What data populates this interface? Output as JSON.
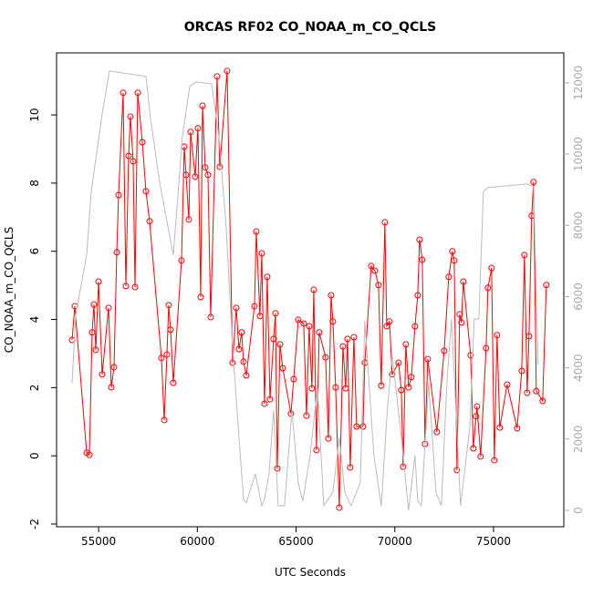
{
  "chart_data": {
    "type": "line",
    "title": "ORCAS RF02 CO_NOAA_m_CO_QCLS",
    "xlabel": "UTC Seconds",
    "ylabel": "CO_NOAA_m_CO_QCLS",
    "xlim": [
      52870,
      78560
    ],
    "xticks": [
      55000,
      60000,
      65000,
      70000,
      75000
    ],
    "ylim": [
      -2.08,
      11.82
    ],
    "yticks": [
      -2,
      0,
      2,
      4,
      6,
      8,
      10
    ],
    "y2lim": [
      -460,
      12840
    ],
    "y2ticks": [
      0,
      2000,
      4000,
      6000,
      8000,
      10000,
      12000
    ],
    "x": [
      53655,
      53794,
      54394,
      54533,
      54671,
      54764,
      54856,
      54995,
      55180,
      55503,
      55641,
      55780,
      55919,
      56011,
      56242,
      56380,
      56519,
      56611,
      56750,
      56842,
      56981,
      57212,
      57397,
      57581,
      58182,
      58320,
      58459,
      58551,
      58644,
      58782,
      59198,
      59337,
      59429,
      59568,
      59660,
      59891,
      60029,
      60168,
      60260,
      60399,
      60538,
      60676,
      61000,
      61138,
      61508,
      61785,
      61970,
      62108,
      62247,
      62339,
      62478,
      62893,
      62986,
      63170,
      63263,
      63401,
      63540,
      63678,
      63863,
      63956,
      64048,
      64187,
      64326,
      64741,
      64879,
      65110,
      65387,
      65526,
      65665,
      65803,
      65896,
      66034,
      66173,
      66496,
      66635,
      66773,
      66866,
      67004,
      67189,
      67374,
      67512,
      67605,
      67743,
      67928,
      68067,
      68390,
      68482,
      68806,
      68991,
      69175,
      69314,
      69498,
      69591,
      69730,
      69868,
      70191,
      70330,
      70422,
      70561,
      70699,
      70838,
      71023,
      71161,
      71254,
      71392,
      71531,
      71670,
      72131,
      72501,
      72732,
      72916,
      73009,
      73148,
      73286,
      73378,
      73471,
      73841,
      73979,
      74117,
      74164,
      74348,
      74625,
      74717,
      74902,
      75041,
      75180,
      75318,
      75688,
      76196,
      76427,
      76565,
      76704,
      76796,
      76935,
      77027,
      77166,
      77489,
      77674
    ],
    "series": [
      {
        "color": "#ff0000",
        "axis": "y",
        "markers": true,
        "values": [
          3.4,
          4.39,
          0.09,
          0.03,
          3.62,
          4.44,
          3.11,
          5.11,
          2.39,
          4.34,
          2.01,
          2.6,
          5.97,
          7.65,
          10.65,
          4.98,
          8.8,
          9.95,
          8.64,
          4.95,
          10.65,
          9.2,
          7.76,
          6.88,
          2.87,
          1.05,
          2.97,
          4.42,
          3.7,
          2.14,
          5.73,
          9.07,
          8.24,
          6.93,
          9.5,
          8.19,
          9.61,
          4.66,
          10.27,
          8.46,
          8.24,
          4.07,
          11.13,
          8.48,
          11.29,
          2.73,
          4.34,
          3.13,
          3.62,
          2.76,
          2.36,
          4.39,
          6.58,
          4.1,
          5.94,
          1.53,
          5.25,
          1.66,
          3.43,
          4.18,
          -0.37,
          3.27,
          2.57,
          1.24,
          2.25,
          3.99,
          3.88,
          1.18,
          3.8,
          1.98,
          4.87,
          0.17,
          3.62,
          2.89,
          0.51,
          4.71,
          3.94,
          2.01,
          -1.52,
          3.21,
          1.98,
          3.43,
          -0.34,
          3.48,
          0.86,
          0.86,
          2.73,
          5.57,
          5.43,
          5.01,
          2.06,
          6.85,
          3.8,
          3.94,
          2.39,
          2.73,
          1.93,
          -0.32,
          3.27,
          2.01,
          2.31,
          3.8,
          4.71,
          6.34,
          5.75,
          0.35,
          2.84,
          0.7,
          3.08,
          5.25,
          6.0,
          5.73,
          -0.42,
          4.15,
          3.91,
          5.11,
          2.95,
          0.22,
          1.16,
          1.45,
          -0.02,
          3.16,
          4.93,
          5.51,
          -0.13,
          3.54,
          0.83,
          2.09,
          0.81,
          2.49,
          5.89,
          1.85,
          3.51,
          7.04,
          8.03,
          1.9,
          1.61,
          5.01
        ]
      },
      {
        "color": "#bbbbbb",
        "axis": "y2",
        "markers": false,
        "x": [
          53655,
          53840,
          54394,
          54625,
          55180,
          55550,
          57397,
          57627,
          58089,
          58782,
          59244,
          59613,
          59937,
          60722,
          61092,
          61461,
          61785,
          62108,
          62339,
          62478,
          62939,
          63263,
          63401,
          63632,
          63863,
          64094,
          64418,
          64788,
          65110,
          65341,
          65711,
          66081,
          66404,
          66866,
          67189,
          67466,
          67790,
          68251,
          68482,
          68944,
          69314,
          69637,
          69868,
          70330,
          70699,
          71023,
          71161,
          71346,
          71716,
          72085,
          72362,
          72639,
          72870,
          73332,
          73794,
          74025,
          74256,
          74487,
          74717,
          76704,
          77027,
          77258
        ],
        "values": [
          3580,
          5500,
          7160,
          8950,
          11130,
          12330,
          12180,
          11000,
          9210,
          7160,
          10490,
          11900,
          12020,
          11970,
          10490,
          7930,
          4600,
          2050,
          310,
          210,
          1020,
          130,
          310,
          1020,
          2810,
          130,
          130,
          2810,
          770,
          260,
          1540,
          3450,
          130,
          510,
          2050,
          510,
          130,
          770,
          5320,
          1540,
          130,
          2940,
          4350,
          2050,
          0,
          1540,
          260,
          130,
          3580,
          510,
          130,
          3580,
          5370,
          130,
          2300,
          5370,
          5370,
          8950,
          9060,
          9160,
          9080,
          4090
        ]
      }
    ]
  }
}
